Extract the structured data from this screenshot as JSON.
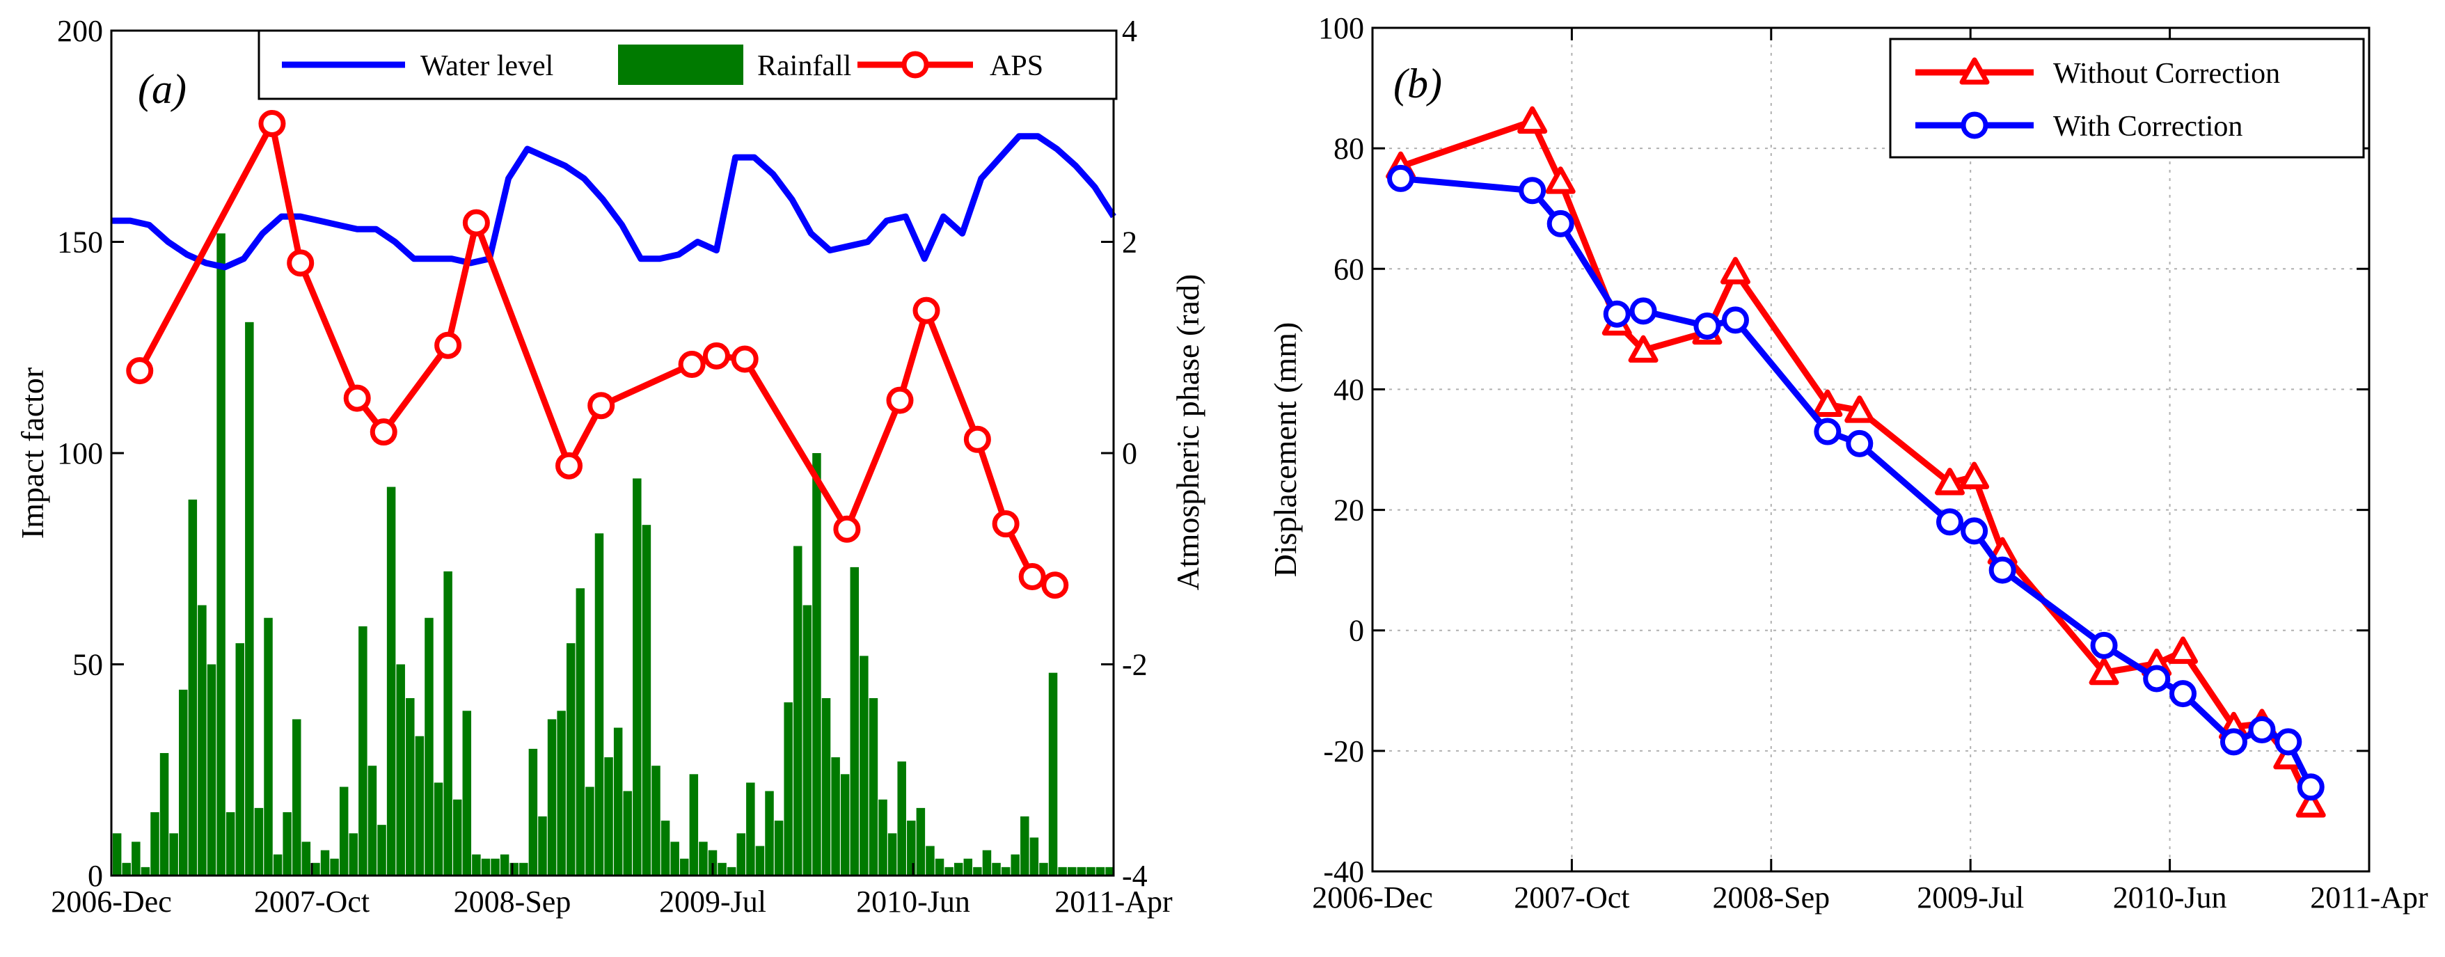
{
  "chart_data": [
    {
      "panel": "(a)",
      "type": "line",
      "xlabel": "",
      "ylabel": "Impact factor",
      "y2label": "Atmospheric phase (rad)",
      "x_ticks": [
        "2006-Dec",
        "2007-Oct",
        "2008-Sep",
        "2009-Jul",
        "2010-Jun",
        "2011-Apr"
      ],
      "x_range": [
        0,
        53
      ],
      "ylim": [
        0,
        200
      ],
      "y_ticks": [
        "0",
        "50",
        "100",
        "150",
        "200"
      ],
      "y2lim": [
        -4,
        4
      ],
      "y2_ticks": [
        "-4",
        "-2",
        "0",
        "2",
        "4"
      ],
      "grid": false,
      "legend_position": "top",
      "legend": [
        "Water level",
        "Rainfall",
        "APS"
      ],
      "colors": {
        "water": "#0000ff",
        "rain": "#007a00",
        "aps": "#ff0000"
      },
      "series": [
        {
          "name": "Water level",
          "axis": "left",
          "x": [
            0,
            1,
            2,
            3,
            4,
            5,
            6,
            7,
            8,
            9,
            10,
            11,
            12,
            13,
            14,
            15,
            16,
            17,
            18,
            19,
            20,
            21,
            22,
            23,
            24,
            25,
            26,
            27,
            28,
            29,
            30,
            31,
            32,
            33,
            34,
            35,
            36,
            37,
            38,
            39,
            40,
            41,
            42,
            43,
            44,
            45,
            46,
            47,
            48,
            49,
            50,
            51,
            52,
            53
          ],
          "values": [
            155,
            155,
            154,
            150,
            147,
            145,
            144,
            146,
            152,
            156,
            156,
            155,
            154,
            153,
            153,
            150,
            146,
            146,
            146,
            145,
            146,
            165,
            172,
            170,
            168,
            165,
            160,
            154,
            146,
            146,
            147,
            150,
            148,
            170,
            170,
            166,
            160,
            152,
            148,
            149,
            150,
            155,
            156,
            146,
            156,
            152,
            165,
            170,
            175,
            175,
            172,
            168,
            163,
            156
          ]
        },
        {
          "name": "APS",
          "axis": "right",
          "x": [
            1.5,
            8.5,
            10,
            13,
            14.4,
            17.8,
            19.3,
            24.2,
            25.9,
            30.7,
            32,
            33.5,
            38.9,
            41.7,
            43.1,
            45.8,
            47.3,
            48.7,
            49.9
          ],
          "values": [
            0.78,
            3.12,
            1.8,
            0.52,
            0.2,
            1.02,
            2.18,
            -0.12,
            0.45,
            0.84,
            0.92,
            0.89,
            -0.72,
            0.5,
            1.35,
            0.13,
            -0.67,
            -1.17,
            -1.25
          ]
        },
        {
          "name": "Rainfall",
          "axis": "left",
          "x": [
            0.3,
            0.8,
            1.3,
            1.8,
            2.3,
            2.8,
            3.3,
            3.8,
            4.3,
            4.8,
            5.3,
            5.8,
            6.3,
            6.8,
            7.3,
            7.8,
            8.3,
            8.8,
            9.3,
            9.8,
            10.3,
            10.8,
            11.3,
            11.8,
            12.3,
            12.8,
            13.3,
            13.8,
            14.3,
            14.8,
            15.3,
            15.8,
            16.3,
            16.8,
            17.3,
            17.8,
            18.3,
            18.8,
            19.3,
            19.8,
            20.3,
            20.8,
            21.3,
            21.8,
            22.3,
            22.8,
            23.3,
            23.8,
            24.3,
            24.8,
            25.3,
            25.8,
            26.3,
            26.8,
            27.3,
            27.8,
            28.3,
            28.8,
            29.3,
            29.8,
            30.3,
            30.8,
            31.3,
            31.8,
            32.3,
            32.8,
            33.3,
            33.8,
            34.3,
            34.8,
            35.3,
            35.8,
            36.3,
            36.8,
            37.3,
            37.8,
            38.3,
            38.8,
            39.3,
            39.8,
            40.3,
            40.8,
            41.3,
            41.8,
            42.3,
            42.8,
            43.3,
            43.8,
            44.3,
            44.8,
            45.3,
            45.8,
            46.3,
            46.8,
            47.3,
            47.8,
            48.3,
            48.8,
            49.3,
            49.8,
            50.3,
            50.8,
            51.3,
            51.8,
            52.3,
            52.8
          ],
          "values": [
            10,
            3,
            8,
            2,
            15,
            29,
            10,
            44,
            89,
            64,
            50,
            152,
            15,
            55,
            131,
            16,
            61,
            5,
            15,
            37,
            8,
            3,
            6,
            4,
            21,
            10,
            59,
            26,
            12,
            92,
            50,
            42,
            33,
            61,
            22,
            72,
            18,
            39,
            5,
            4,
            4,
            5,
            3,
            3,
            30,
            14,
            37,
            39,
            55,
            68,
            21,
            81,
            28,
            35,
            20,
            94,
            83,
            26,
            13,
            8,
            4,
            24,
            8,
            6,
            3,
            2,
            10,
            22,
            7,
            20,
            13,
            41,
            78,
            64,
            100,
            42,
            28,
            24,
            73,
            52,
            42,
            18,
            10,
            27,
            13,
            16,
            7,
            4,
            2,
            3,
            4,
            2,
            6,
            3,
            2,
            5,
            14,
            9,
            3,
            48,
            2,
            2,
            2,
            2,
            2,
            2
          ]
        }
      ]
    },
    {
      "panel": "(b)",
      "type": "line",
      "xlabel": "",
      "ylabel": "Displacement (mm)",
      "x_ticks": [
        "2006-Dec",
        "2007-Oct",
        "2008-Sep",
        "2009-Jul",
        "2010-Jun",
        "2011-Apr"
      ],
      "x_range": [
        0,
        53
      ],
      "ylim": [
        -40,
        100
      ],
      "y_ticks": [
        "-40",
        "-20",
        "0",
        "20",
        "40",
        "60",
        "80",
        "100"
      ],
      "grid": true,
      "legend_position": "top-right",
      "legend": [
        "Without Correction",
        "With Correction"
      ],
      "colors": {
        "without": "#ff0000",
        "with": "#0000ff"
      },
      "series": [
        {
          "name": "Without Correction",
          "marker": "triangle",
          "x": [
            1.5,
            8.5,
            10,
            13,
            14.4,
            17.8,
            19.3,
            24.2,
            25.9,
            30.7,
            32,
            33.5,
            38.9,
            41.7,
            43.1,
            45.8,
            47.3,
            48.7,
            49.9
          ],
          "values": [
            77,
            84.5,
            74.5,
            51,
            46.5,
            49.5,
            59.5,
            37.5,
            36.5,
            24.5,
            25.5,
            13,
            -7,
            -5.5,
            -3.5,
            -16,
            -15.5,
            -21,
            -29
          ]
        },
        {
          "name": "With Correction",
          "marker": "circle",
          "x": [
            1.5,
            8.5,
            10,
            13,
            14.4,
            17.8,
            19.3,
            24.2,
            25.9,
            30.7,
            32,
            33.5,
            38.9,
            41.7,
            43.1,
            45.8,
            47.3,
            48.7,
            49.9
          ],
          "values": [
            75,
            73,
            67.5,
            52.5,
            53,
            50.5,
            51.5,
            33,
            31,
            18,
            16.5,
            10,
            -2.5,
            -8,
            -10.5,
            -18.5,
            -16.5,
            -18.5,
            -26
          ]
        }
      ]
    }
  ]
}
